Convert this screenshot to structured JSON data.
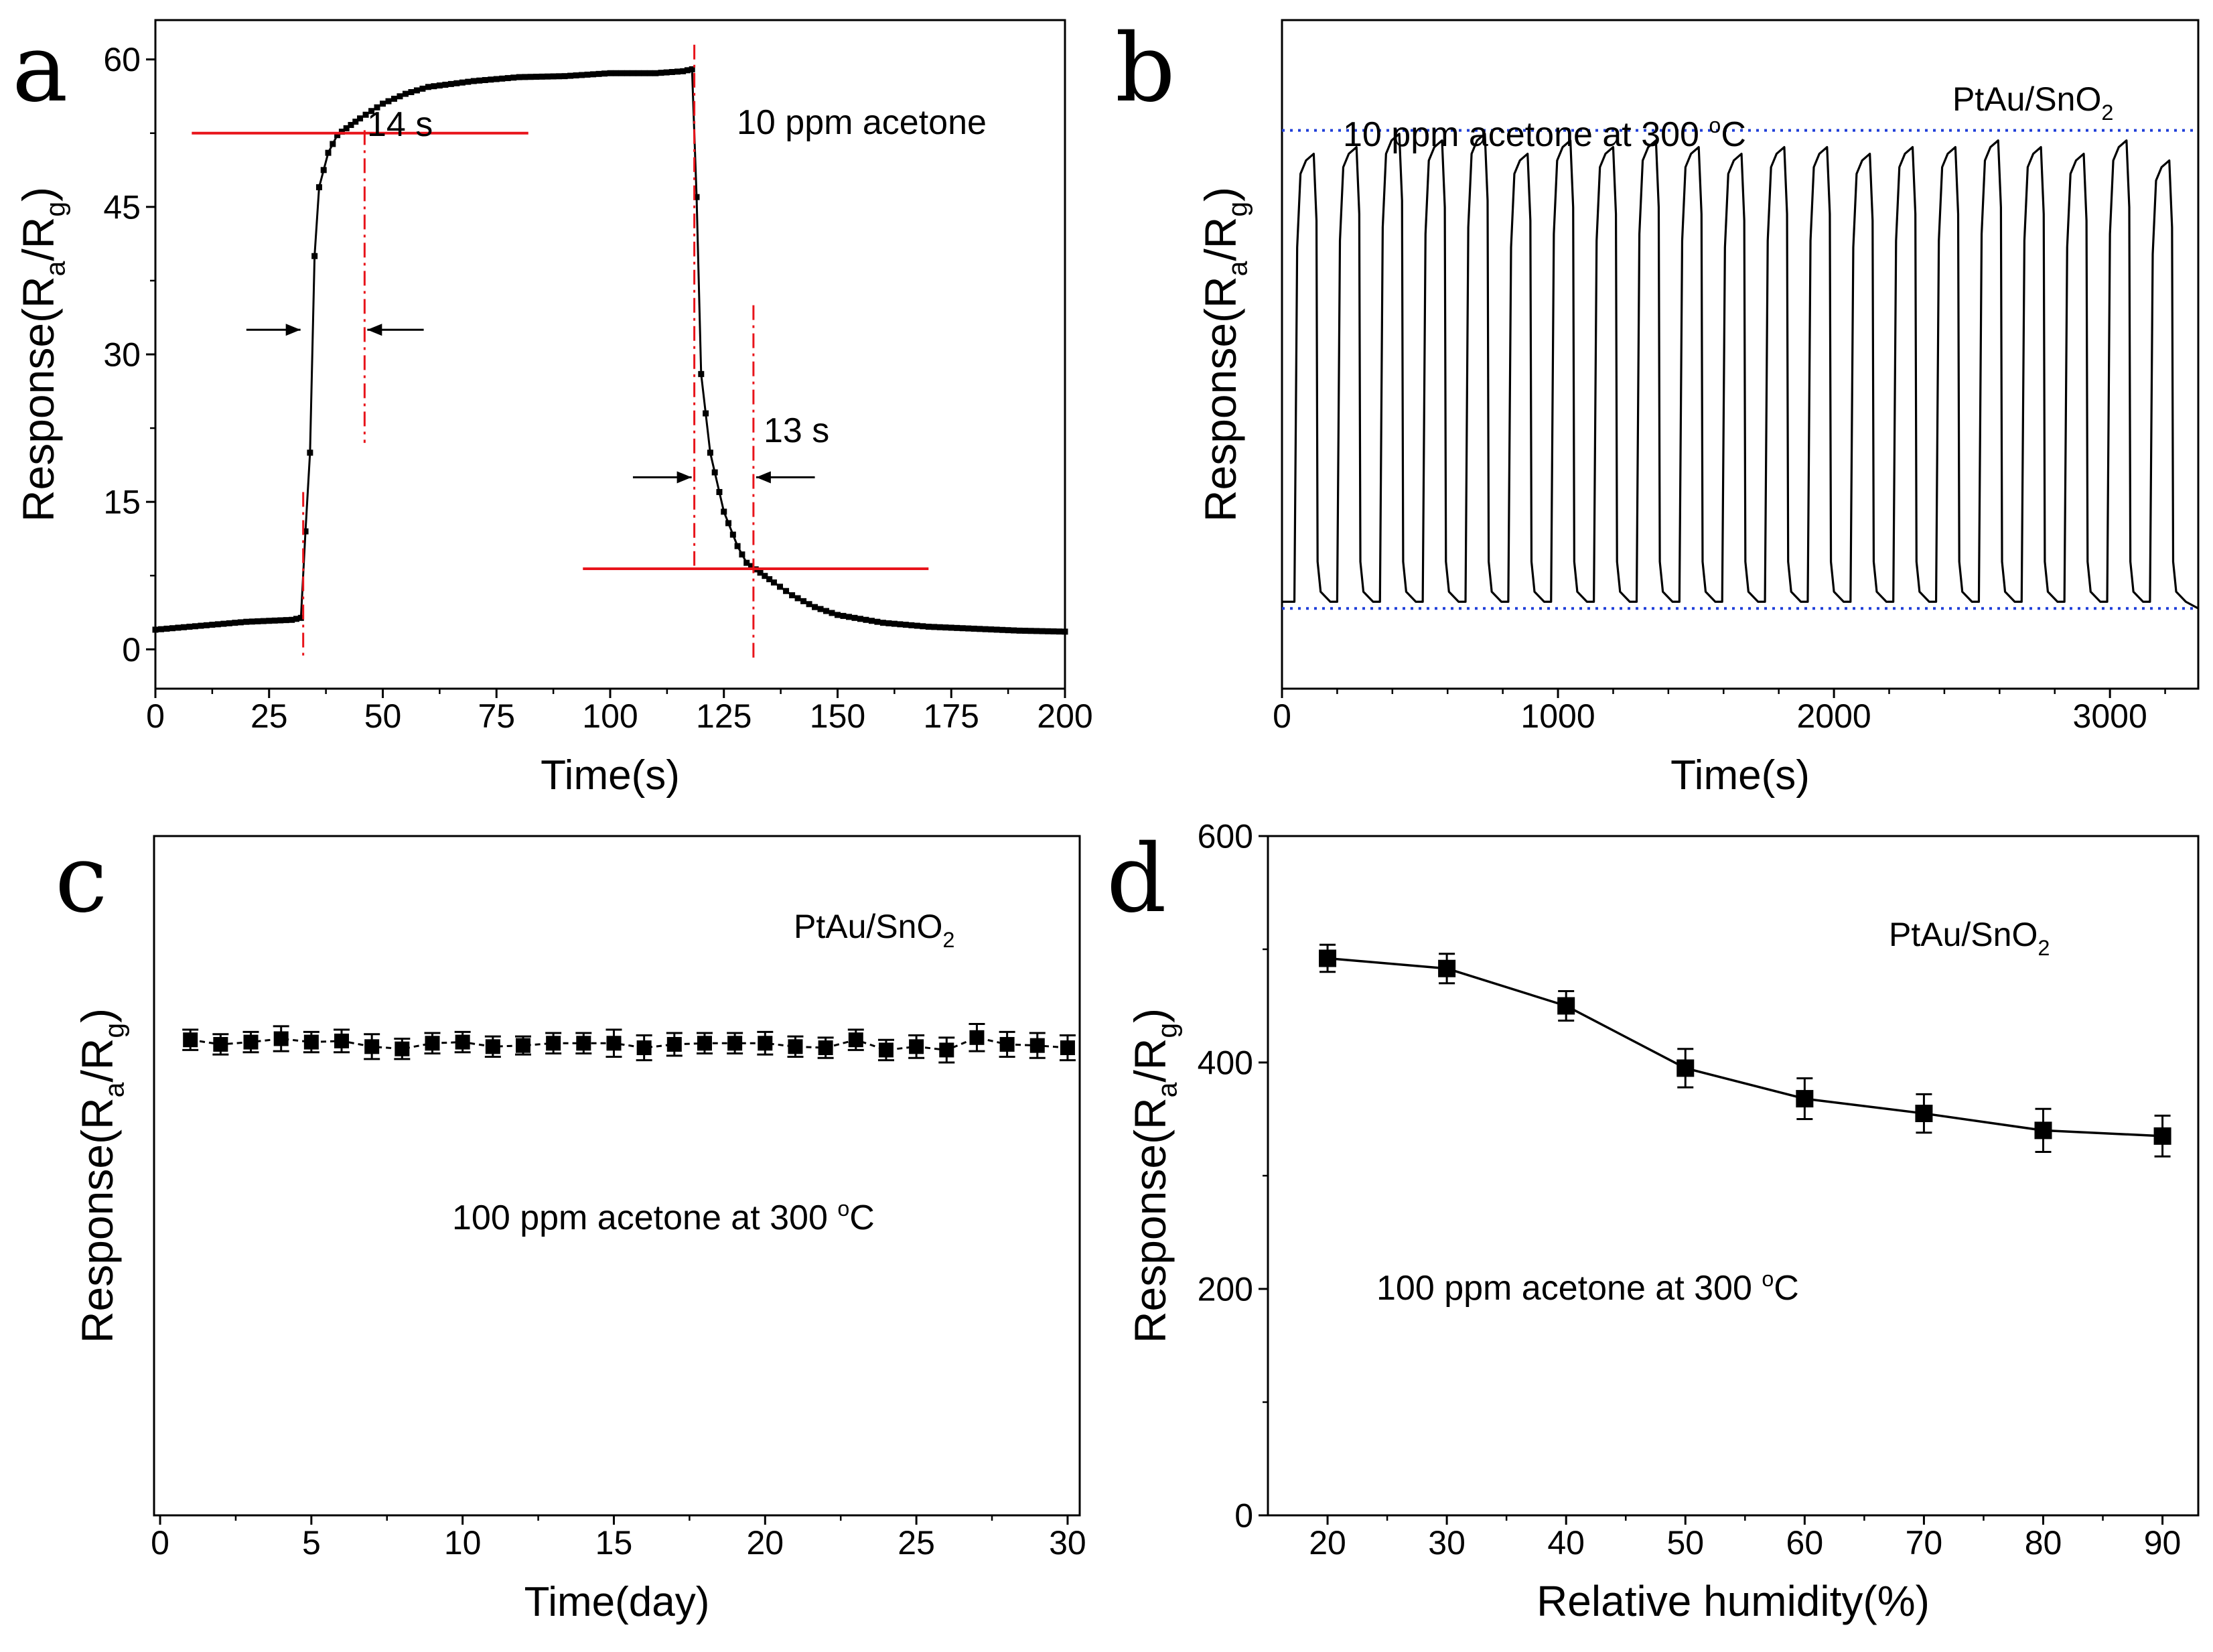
{
  "figure": {
    "colors": {
      "axis": "#000000",
      "annotation": "#e8141b",
      "baseline": "#1f3fd9"
    }
  },
  "chart_data": [
    {
      "panel": "a",
      "type": "line",
      "xlabel": "Time(s)",
      "ylabel": [
        "Response(R",
        "a",
        "/R",
        "g",
        ")"
      ],
      "xlim": [
        0,
        200
      ],
      "ylim": [
        -4,
        64
      ],
      "xticks": [
        0,
        25,
        50,
        75,
        100,
        125,
        150,
        175,
        200
      ],
      "yticks": [
        0,
        15,
        30,
        45,
        60
      ],
      "annotation_text": "10 ppm acetone",
      "response_time_label": "14 s",
      "recovery_time_label": "13 s",
      "series": [
        {
          "name": "response",
          "marker": "square",
          "x": [
            0,
            10,
            20,
            30,
            32,
            33,
            34,
            35,
            36,
            38,
            40,
            42,
            45,
            50,
            55,
            60,
            70,
            80,
            90,
            100,
            110,
            116,
            118,
            119,
            120,
            122,
            125,
            128,
            130,
            133,
            136,
            140,
            145,
            150,
            160,
            170,
            180,
            190,
            200
          ],
          "y": [
            2.0,
            2.4,
            2.8,
            3.0,
            3.2,
            12,
            20,
            40,
            47,
            50.5,
            52.3,
            53,
            54,
            55.5,
            56.5,
            57.2,
            57.8,
            58.2,
            58.3,
            58.6,
            58.6,
            58.8,
            59.0,
            46,
            28,
            20,
            14,
            10.5,
            8.8,
            7.8,
            6.8,
            5.5,
            4.3,
            3.5,
            2.7,
            2.3,
            2.1,
            1.9,
            1.8
          ]
        }
      ],
      "reference_lines": {
        "response_level": 52.5,
        "recovery_level": 8.2,
        "response_start_x": 32.5,
        "response_end_x": 46,
        "recovery_start_x": 118.5,
        "recovery_end_x": 131.5
      }
    },
    {
      "panel": "b",
      "type": "line",
      "xlabel": "Time(s)",
      "ylabel": [
        "Response(R",
        "a",
        "/R",
        "g",
        ")"
      ],
      "xlim": [
        0,
        3320
      ],
      "ylim": [
        0,
        100
      ],
      "xticks": [
        0,
        1000,
        2000,
        3000
      ],
      "yticks": [],
      "annotation_text": "10 ppm acetone at 300 ",
      "temp_unit": "C",
      "temp_degree": "o",
      "material": [
        "PtAu/SnO",
        "2"
      ],
      "cycle_period_s": 155,
      "cycle_count": 21,
      "baseline_level": 12,
      "upper_level": 82,
      "cycle_peaks": [
        80,
        81,
        83,
        82,
        83,
        80,
        82,
        81,
        82,
        81,
        80,
        81,
        81,
        80,
        81,
        81,
        82,
        81,
        80,
        82,
        79
      ]
    },
    {
      "panel": "c",
      "type": "scatter",
      "xlabel": "Time(day)",
      "ylabel": [
        "Response(R",
        "a",
        "/R",
        "g",
        ")"
      ],
      "xlim": [
        -0.2,
        30.4
      ],
      "ylim": [
        0,
        600
      ],
      "xticks": [
        0,
        5,
        10,
        15,
        20,
        25,
        30
      ],
      "yticks": [],
      "annotation_text": "100 ppm acetone at 300 ",
      "temp_unit": "C",
      "temp_degree": "o",
      "material": [
        "PtAu/SnO",
        "2"
      ],
      "series": [
        {
          "name": "response",
          "marker": "square",
          "x": [
            1,
            2,
            3,
            4,
            5,
            6,
            7,
            8,
            9,
            10,
            11,
            12,
            13,
            14,
            15,
            16,
            17,
            18,
            19,
            20,
            21,
            22,
            23,
            24,
            25,
            26,
            27,
            28,
            29,
            30
          ],
          "y": [
            420,
            416,
            418,
            421,
            418,
            419,
            414,
            412,
            417,
            418,
            414,
            415,
            417,
            417,
            417,
            413,
            416,
            417,
            417,
            417,
            414,
            413,
            420,
            411,
            414,
            411,
            422,
            416,
            415,
            413
          ],
          "err": [
            9,
            9,
            9,
            11,
            9,
            10,
            11,
            9,
            9,
            9,
            9,
            8,
            9,
            9,
            12,
            11,
            10,
            9,
            9,
            10,
            9,
            9,
            9,
            9,
            10,
            11,
            12,
            11,
            11,
            11
          ]
        }
      ]
    },
    {
      "panel": "d",
      "type": "line",
      "xlabel": "Relative humidity(%)",
      "ylabel": [
        "Response(R",
        "a",
        "/R",
        "g",
        ")"
      ],
      "xlim": [
        15,
        93
      ],
      "ylim": [
        0,
        600
      ],
      "xticks": [
        20,
        30,
        40,
        50,
        60,
        70,
        80,
        90
      ],
      "yticks": [
        0,
        200,
        400,
        600
      ],
      "annotation_text": "100 ppm acetone at 300 ",
      "temp_unit": "C",
      "temp_degree": "o",
      "material": [
        "PtAu/SnO",
        "2"
      ],
      "series": [
        {
          "name": "response",
          "marker": "square",
          "x": [
            20,
            30,
            40,
            50,
            60,
            70,
            80,
            90
          ],
          "y": [
            492,
            483,
            450,
            395,
            368,
            355,
            340,
            335
          ],
          "err": [
            12,
            13,
            13,
            17,
            18,
            17,
            19,
            18
          ]
        }
      ]
    }
  ]
}
